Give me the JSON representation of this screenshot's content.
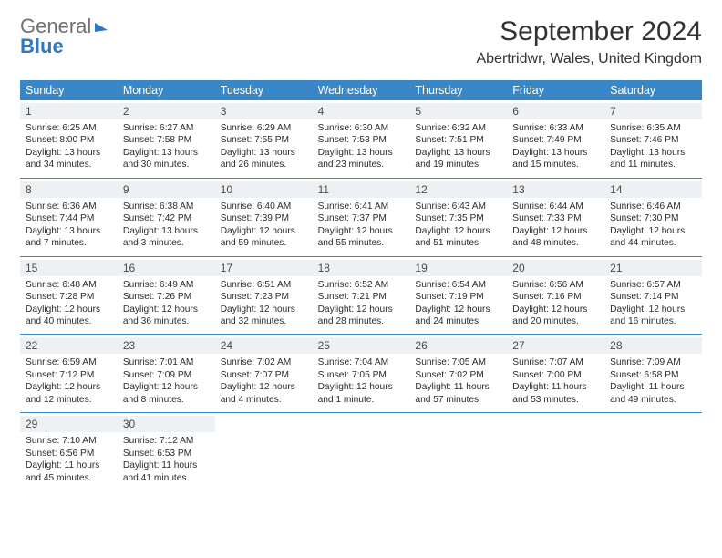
{
  "brand": {
    "part1": "General",
    "part2": "Blue"
  },
  "header": {
    "month_title": "September 2024",
    "location": "Abertridwr, Wales, United Kingdom"
  },
  "colors": {
    "accent": "#3a87c7",
    "daynum_bg": "#eef1f3",
    "text": "#2b2b2b",
    "logo_gray": "#707070",
    "logo_blue": "#2f78c2"
  },
  "day_labels": [
    "Sunday",
    "Monday",
    "Tuesday",
    "Wednesday",
    "Thursday",
    "Friday",
    "Saturday"
  ],
  "weeks": [
    [
      {
        "n": "1",
        "sr": "Sunrise: 6:25 AM",
        "ss": "Sunset: 8:00 PM",
        "d1": "Daylight: 13 hours",
        "d2": "and 34 minutes."
      },
      {
        "n": "2",
        "sr": "Sunrise: 6:27 AM",
        "ss": "Sunset: 7:58 PM",
        "d1": "Daylight: 13 hours",
        "d2": "and 30 minutes."
      },
      {
        "n": "3",
        "sr": "Sunrise: 6:29 AM",
        "ss": "Sunset: 7:55 PM",
        "d1": "Daylight: 13 hours",
        "d2": "and 26 minutes."
      },
      {
        "n": "4",
        "sr": "Sunrise: 6:30 AM",
        "ss": "Sunset: 7:53 PM",
        "d1": "Daylight: 13 hours",
        "d2": "and 23 minutes."
      },
      {
        "n": "5",
        "sr": "Sunrise: 6:32 AM",
        "ss": "Sunset: 7:51 PM",
        "d1": "Daylight: 13 hours",
        "d2": "and 19 minutes."
      },
      {
        "n": "6",
        "sr": "Sunrise: 6:33 AM",
        "ss": "Sunset: 7:49 PM",
        "d1": "Daylight: 13 hours",
        "d2": "and 15 minutes."
      },
      {
        "n": "7",
        "sr": "Sunrise: 6:35 AM",
        "ss": "Sunset: 7:46 PM",
        "d1": "Daylight: 13 hours",
        "d2": "and 11 minutes."
      }
    ],
    [
      {
        "n": "8",
        "sr": "Sunrise: 6:36 AM",
        "ss": "Sunset: 7:44 PM",
        "d1": "Daylight: 13 hours",
        "d2": "and 7 minutes."
      },
      {
        "n": "9",
        "sr": "Sunrise: 6:38 AM",
        "ss": "Sunset: 7:42 PM",
        "d1": "Daylight: 13 hours",
        "d2": "and 3 minutes."
      },
      {
        "n": "10",
        "sr": "Sunrise: 6:40 AM",
        "ss": "Sunset: 7:39 PM",
        "d1": "Daylight: 12 hours",
        "d2": "and 59 minutes."
      },
      {
        "n": "11",
        "sr": "Sunrise: 6:41 AM",
        "ss": "Sunset: 7:37 PM",
        "d1": "Daylight: 12 hours",
        "d2": "and 55 minutes."
      },
      {
        "n": "12",
        "sr": "Sunrise: 6:43 AM",
        "ss": "Sunset: 7:35 PM",
        "d1": "Daylight: 12 hours",
        "d2": "and 51 minutes."
      },
      {
        "n": "13",
        "sr": "Sunrise: 6:44 AM",
        "ss": "Sunset: 7:33 PM",
        "d1": "Daylight: 12 hours",
        "d2": "and 48 minutes."
      },
      {
        "n": "14",
        "sr": "Sunrise: 6:46 AM",
        "ss": "Sunset: 7:30 PM",
        "d1": "Daylight: 12 hours",
        "d2": "and 44 minutes."
      }
    ],
    [
      {
        "n": "15",
        "sr": "Sunrise: 6:48 AM",
        "ss": "Sunset: 7:28 PM",
        "d1": "Daylight: 12 hours",
        "d2": "and 40 minutes."
      },
      {
        "n": "16",
        "sr": "Sunrise: 6:49 AM",
        "ss": "Sunset: 7:26 PM",
        "d1": "Daylight: 12 hours",
        "d2": "and 36 minutes."
      },
      {
        "n": "17",
        "sr": "Sunrise: 6:51 AM",
        "ss": "Sunset: 7:23 PM",
        "d1": "Daylight: 12 hours",
        "d2": "and 32 minutes."
      },
      {
        "n": "18",
        "sr": "Sunrise: 6:52 AM",
        "ss": "Sunset: 7:21 PM",
        "d1": "Daylight: 12 hours",
        "d2": "and 28 minutes."
      },
      {
        "n": "19",
        "sr": "Sunrise: 6:54 AM",
        "ss": "Sunset: 7:19 PM",
        "d1": "Daylight: 12 hours",
        "d2": "and 24 minutes."
      },
      {
        "n": "20",
        "sr": "Sunrise: 6:56 AM",
        "ss": "Sunset: 7:16 PM",
        "d1": "Daylight: 12 hours",
        "d2": "and 20 minutes."
      },
      {
        "n": "21",
        "sr": "Sunrise: 6:57 AM",
        "ss": "Sunset: 7:14 PM",
        "d1": "Daylight: 12 hours",
        "d2": "and 16 minutes."
      }
    ],
    [
      {
        "n": "22",
        "sr": "Sunrise: 6:59 AM",
        "ss": "Sunset: 7:12 PM",
        "d1": "Daylight: 12 hours",
        "d2": "and 12 minutes."
      },
      {
        "n": "23",
        "sr": "Sunrise: 7:01 AM",
        "ss": "Sunset: 7:09 PM",
        "d1": "Daylight: 12 hours",
        "d2": "and 8 minutes."
      },
      {
        "n": "24",
        "sr": "Sunrise: 7:02 AM",
        "ss": "Sunset: 7:07 PM",
        "d1": "Daylight: 12 hours",
        "d2": "and 4 minutes."
      },
      {
        "n": "25",
        "sr": "Sunrise: 7:04 AM",
        "ss": "Sunset: 7:05 PM",
        "d1": "Daylight: 12 hours",
        "d2": "and 1 minute."
      },
      {
        "n": "26",
        "sr": "Sunrise: 7:05 AM",
        "ss": "Sunset: 7:02 PM",
        "d1": "Daylight: 11 hours",
        "d2": "and 57 minutes."
      },
      {
        "n": "27",
        "sr": "Sunrise: 7:07 AM",
        "ss": "Sunset: 7:00 PM",
        "d1": "Daylight: 11 hours",
        "d2": "and 53 minutes."
      },
      {
        "n": "28",
        "sr": "Sunrise: 7:09 AM",
        "ss": "Sunset: 6:58 PM",
        "d1": "Daylight: 11 hours",
        "d2": "and 49 minutes."
      }
    ],
    [
      {
        "n": "29",
        "sr": "Sunrise: 7:10 AM",
        "ss": "Sunset: 6:56 PM",
        "d1": "Daylight: 11 hours",
        "d2": "and 45 minutes."
      },
      {
        "n": "30",
        "sr": "Sunrise: 7:12 AM",
        "ss": "Sunset: 6:53 PM",
        "d1": "Daylight: 11 hours",
        "d2": "and 41 minutes."
      },
      null,
      null,
      null,
      null,
      null
    ]
  ]
}
